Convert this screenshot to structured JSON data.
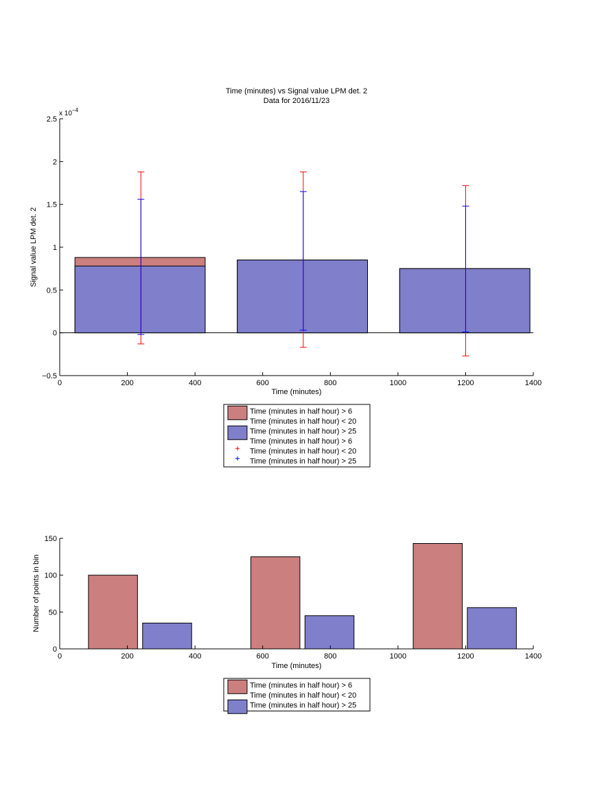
{
  "colors": {
    "series_red": "#cc7f7f",
    "series_blue": "#7f7fcc",
    "errbar_red": "#ff0000",
    "errbar_blue": "#0000ff"
  },
  "legend_top": {
    "entries": [
      {
        "label": "Time (minutes in half hour) > 6",
        "marker": "patch-red"
      },
      {
        "label": "Time (minutes in half hour) < 20",
        "marker": "none"
      },
      {
        "label": "Time (minutes in half hour) > 25",
        "marker": "patch-blue"
      },
      {
        "label": "Time (minutes in half hour) > 6",
        "marker": "none"
      },
      {
        "label": "Time (minutes in half hour) < 20",
        "marker": "plus-red"
      },
      {
        "label": "Time (minutes in half hour) > 25",
        "marker": "plus-blue"
      }
    ]
  },
  "legend_bottom": {
    "entries": [
      {
        "label": "Time (minutes in half hour) > 6",
        "marker": "patch-red"
      },
      {
        "label": "Time (minutes in half hour) < 20",
        "marker": "none"
      },
      {
        "label": "Time (minutes in half hour) > 25",
        "marker": "patch-blue"
      }
    ]
  },
  "chart_data": [
    {
      "type": "bar",
      "title": "Time (minutes) vs Signal value LPM det. 2",
      "subtitle": "Data for 2016/11/23",
      "xlabel": "Time (minutes)",
      "ylabel": "Signal value LPM det. 2",
      "y_exponent_label": "x 10",
      "y_exponent_power": "−4",
      "xlim": [
        0,
        1400
      ],
      "ylim": [
        -0.5,
        2.5
      ],
      "x_ticks": [
        0,
        200,
        400,
        600,
        800,
        1000,
        1200,
        1400
      ],
      "y_ticks": [
        -0.5,
        0,
        0.5,
        1,
        1.5,
        2,
        2.5
      ],
      "y_tick_labels": [
        "−0.5",
        "0",
        "0.5",
        "1",
        "1.5",
        "2",
        "2.5"
      ],
      "bar_ranges": [
        [
          45,
          430
        ],
        [
          525,
          910
        ],
        [
          1005,
          1390
        ]
      ],
      "series": [
        {
          "name": "Time (minutes in half hour) > 6 Time (minutes in half hour) < 20",
          "color": "#cc7f7f",
          "values": [
            0.88,
            0.85,
            0.75
          ]
        },
        {
          "name": "Time (minutes in half hour) > 25",
          "color": "#7f7fcc",
          "values": [
            0.78,
            0.85,
            0.75
          ]
        }
      ],
      "error_bars": [
        {
          "series": "red",
          "color": "#ff0000",
          "x": [
            240,
            720,
            1200
          ],
          "lower": [
            -0.13,
            -0.17,
            -0.27
          ],
          "upper": [
            1.88,
            1.88,
            1.72
          ]
        },
        {
          "series": "blue",
          "color": "#0000ff",
          "x": [
            240,
            720,
            1200
          ],
          "lower": [
            -0.02,
            0.03,
            0.01
          ],
          "upper": [
            1.56,
            1.65,
            1.48
          ]
        }
      ],
      "legend_placement": "below"
    },
    {
      "type": "bar",
      "xlabel": "Time (minutes)",
      "ylabel": "Number of points in bin",
      "xlim": [
        0,
        1400
      ],
      "ylim": [
        0,
        150
      ],
      "x_ticks": [
        0,
        200,
        400,
        600,
        800,
        1000,
        1200,
        1400
      ],
      "y_ticks": [
        0,
        50,
        100,
        150
      ],
      "series": [
        {
          "name": "Time (minutes in half hour) > 6 Time (minutes in half hour) < 20",
          "color": "#cc7f7f",
          "x_ranges": [
            [
              85,
              230
            ],
            [
              565,
              710
            ],
            [
              1045,
              1190
            ]
          ],
          "values": [
            100,
            125,
            143
          ]
        },
        {
          "name": "Time (minutes in half hour) > 25",
          "color": "#7f7fcc",
          "x_ranges": [
            [
              245,
              390
            ],
            [
              725,
              870
            ],
            [
              1205,
              1350
            ]
          ],
          "values": [
            35,
            45,
            56
          ]
        }
      ],
      "legend_placement": "below"
    }
  ]
}
